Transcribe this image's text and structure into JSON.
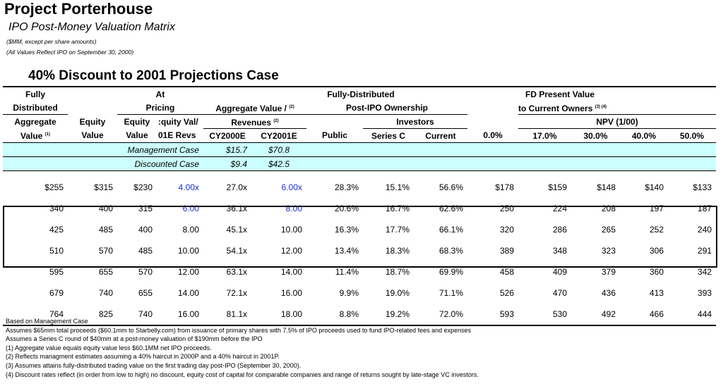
{
  "title": "Project Porterhouse",
  "subtitle": "IPO Post-Money Valuation Matrix",
  "notes": [
    "($MM, except per share amounts)",
    "(All Values Reflect IPO on September 30, 2000)"
  ],
  "case_title": "40%  Discount to 2001 Projections Case",
  "headers": {
    "row1": {
      "fully": "Fully",
      "at": "At",
      "fd": "Fully-Distributed",
      "fdpv": "FD Present Value"
    },
    "row2": {
      "distributed": "Distributed",
      "pricing": "Pricing",
      "aggval": "Aggregate Value /",
      "aggval_note": "(2)",
      "postipo": "Post-IPO Ownership",
      "tocurrent": "to Current Owners",
      "tocurrent_note": "(3) (4)"
    },
    "row3": {
      "aggregate": "Aggregate",
      "equity": "Equity",
      "equity2": "Equity",
      "equity_val": ":quity Val/",
      "revenues": "Revenues",
      "revenues_note": "(2)",
      "investors": "Investors",
      "npv": "NPV (1/00)"
    },
    "row4": {
      "value": "Value",
      "value_note": "(1)",
      "value2": "Value",
      "value3": "Value",
      "revs": "01E Revs",
      "cy2000e": "CY2000E",
      "cy2001e": "CY2001E",
      "public": "Public",
      "seriesc": "Series C",
      "current": "Current",
      "r0": "0.0%",
      "r17": "17.0%",
      "r30": "30.0%",
      "r40": "40.0%",
      "r50": "50.0%"
    }
  },
  "cases": [
    {
      "label": "Management Case",
      "cy2000e": "$15.7",
      "cy2001e": "$70.8"
    },
    {
      "label": "Discounted Case",
      "cy2000e": "$9.4",
      "cy2001e": "$42.5"
    }
  ],
  "rows": [
    {
      "agg": "$255",
      "eq": "$315",
      "pricing": "$230",
      "ratio": "4.00x",
      "cy00": "27.0x",
      "cy01": "6.00x",
      "public": "28.3%",
      "seriesc": "15.1%",
      "current": "56.6%",
      "npv0": "$178",
      "npv17": "$159",
      "npv30": "$148",
      "npv40": "$140",
      "npv50": "$133"
    },
    {
      "agg": "340",
      "eq": "400",
      "pricing": "315",
      "ratio": "6.00",
      "cy00": "36.1x",
      "cy01": "8.00",
      "public": "20.6%",
      "seriesc": "16.7%",
      "current": "62.6%",
      "npv0": "250",
      "npv17": "224",
      "npv30": "208",
      "npv40": "197",
      "npv50": "187"
    },
    {
      "agg": "425",
      "eq": "485",
      "pricing": "400",
      "ratio": "8.00",
      "cy00": "45.1x",
      "cy01": "10.00",
      "public": "16.3%",
      "seriesc": "17.7%",
      "current": "66.1%",
      "npv0": "320",
      "npv17": "286",
      "npv30": "265",
      "npv40": "252",
      "npv50": "240"
    },
    {
      "agg": "510",
      "eq": "570",
      "pricing": "485",
      "ratio": "10.00",
      "cy00": "54.1x",
      "cy01": "12.00",
      "public": "13.4%",
      "seriesc": "18.3%",
      "current": "68.3%",
      "npv0": "389",
      "npv17": "348",
      "npv30": "323",
      "npv40": "306",
      "npv50": "291"
    },
    {
      "agg": "595",
      "eq": "655",
      "pricing": "570",
      "ratio": "12.00",
      "cy00": "63.1x",
      "cy01": "14.00",
      "public": "11.4%",
      "seriesc": "18.7%",
      "current": "69.9%",
      "npv0": "458",
      "npv17": "409",
      "npv30": "379",
      "npv40": "360",
      "npv50": "342"
    },
    {
      "agg": "679",
      "eq": "740",
      "pricing": "655",
      "ratio": "14.00",
      "cy00": "72.1x",
      "cy01": "16.00",
      "public": "9.9%",
      "seriesc": "19.0%",
      "current": "71.1%",
      "npv0": "526",
      "npv17": "470",
      "npv30": "436",
      "npv40": "413",
      "npv50": "393"
    },
    {
      "agg": "764",
      "eq": "825",
      "pricing": "740",
      "ratio": "16.00",
      "cy00": "81.1x",
      "cy01": "18.00",
      "public": "8.8%",
      "seriesc": "19.2%",
      "current": "72.0%",
      "npv0": "593",
      "npv17": "530",
      "npv30": "492",
      "npv40": "466",
      "npv50": "444"
    }
  ],
  "footnotes": [
    "Based on Management Case",
    "Assumes $65mm total proceeds ($60.1mm to Starbelly.com) from issuance of primary shares with 7.5% of IPO proceeds used to fund IPO-related fees and expenses",
    "Assumes a Series C round of $40mm at a post-money valuation of $190mm before the IPO",
    "(1)  Aggregate value equals equity value less $60.1MM net IPO proceeds.",
    "(2)  Reflects managment estimates assuming a 40% haircut in 2000P and a 40% haircut in 2001P.",
    "(3)  Assumes attains fully-distributed trading value on the first trading day post-IPO (September 30, 2000).",
    "(4)  Discount rates reflect (in order from low to high) no discount, equity cost of capital for comparable companies and range of returns sought by late-stage VC investors."
  ],
  "colors": {
    "highlight": "#ccffff",
    "blue_input": "#1a2dd6"
  }
}
